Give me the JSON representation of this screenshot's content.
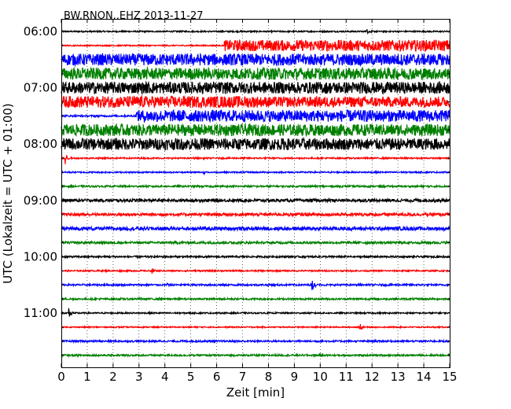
{
  "chart_data": {
    "type": "line",
    "title": "BW.RNON..EHZ 2013-11-27",
    "xlabel": "Zeit  [min]",
    "ylabel": "UTC (Lokalzeit = UTC + 01:00)",
    "xlim": [
      0,
      15
    ],
    "x_ticks": [
      "0",
      "1",
      "2",
      "3",
      "4",
      "5",
      "6",
      "7",
      "8",
      "9",
      "10",
      "11",
      "12",
      "13",
      "14",
      "15"
    ],
    "y_ticks": [
      "06:00",
      "07:00",
      "08:00",
      "09:00",
      "10:00",
      "11:00"
    ],
    "grid": "vertical dotted lines at each minute",
    "color_cycle": [
      "#000000",
      "#ff0000",
      "#0000ff",
      "#008000"
    ],
    "traces": [
      {
        "start": "06:00",
        "color": "#000000",
        "noise": 0.12,
        "events": [
          {
            "t": 11.8,
            "amp": 0.45
          }
        ]
      },
      {
        "start": "06:15",
        "color": "#ff0000",
        "noise": 0.1,
        "raised": {
          "from": 6.3,
          "to": 15,
          "amp": 0.95
        }
      },
      {
        "start": "06:30",
        "color": "#0000ff",
        "noise": 1.0
      },
      {
        "start": "06:45",
        "color": "#008000",
        "noise": 1.0
      },
      {
        "start": "07:00",
        "color": "#000000",
        "noise": 1.0
      },
      {
        "start": "07:15",
        "color": "#ff0000",
        "noise": 0.9,
        "raised": {
          "from": 0,
          "to": 7.6,
          "amp": 1.0
        }
      },
      {
        "start": "07:30",
        "color": "#0000ff",
        "noise": 0.15,
        "raised": {
          "from": 2.9,
          "to": 15,
          "amp": 1.0
        }
      },
      {
        "start": "07:45",
        "color": "#008000",
        "noise": 1.0
      },
      {
        "start": "08:00",
        "color": "#000000",
        "noise": 1.0
      },
      {
        "start": "08:15",
        "color": "#ff0000",
        "noise": 0.12,
        "events": [
          {
            "t": 0.15,
            "amp": 1.1
          }
        ]
      },
      {
        "start": "08:30",
        "color": "#0000ff",
        "noise": 0.12,
        "events": [
          {
            "t": 5.5,
            "amp": 0.35
          }
        ]
      },
      {
        "start": "08:45",
        "color": "#008000",
        "noise": 0.15
      },
      {
        "start": "09:00",
        "color": "#000000",
        "noise": 0.25
      },
      {
        "start": "09:15",
        "color": "#ff0000",
        "noise": 0.25
      },
      {
        "start": "09:30",
        "color": "#0000ff",
        "noise": 0.3,
        "events": [
          {
            "t": 14.6,
            "amp": 0.5
          }
        ]
      },
      {
        "start": "09:45",
        "color": "#008000",
        "noise": 0.2
      },
      {
        "start": "10:00",
        "color": "#000000",
        "noise": 0.15
      },
      {
        "start": "10:15",
        "color": "#ff0000",
        "noise": 0.12,
        "events": [
          {
            "t": 3.5,
            "amp": 0.5
          }
        ]
      },
      {
        "start": "10:30",
        "color": "#0000ff",
        "noise": 0.15,
        "events": [
          {
            "t": 4.1,
            "amp": 0.45
          },
          {
            "t": 9.7,
            "amp": 1.0
          }
        ]
      },
      {
        "start": "10:45",
        "color": "#008000",
        "noise": 0.15
      },
      {
        "start": "11:00",
        "color": "#000000",
        "noise": 0.12,
        "events": [
          {
            "t": 0.3,
            "amp": 0.9
          }
        ]
      },
      {
        "start": "11:15",
        "color": "#ff0000",
        "noise": 0.1,
        "events": [
          {
            "t": 11.55,
            "amp": 1.0
          }
        ]
      },
      {
        "start": "11:30",
        "color": "#0000ff",
        "noise": 0.15
      },
      {
        "start": "11:45",
        "color": "#008000",
        "noise": 0.15
      }
    ]
  }
}
